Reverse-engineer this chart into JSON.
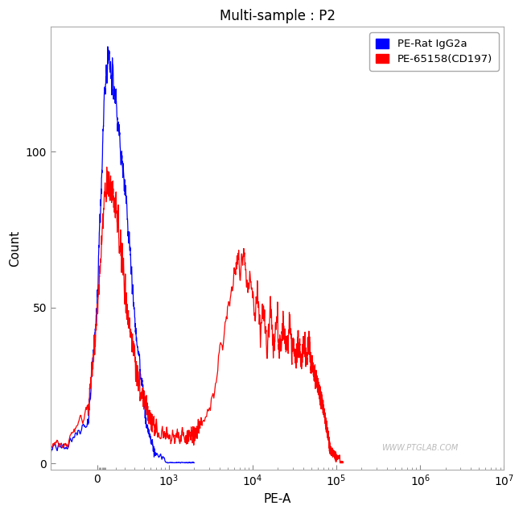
{
  "title": "Multi-sample : P2",
  "xlabel": "PE-A",
  "ylabel": "Count",
  "xlim": [
    -500,
    10000000.0
  ],
  "ylim": [
    -2,
    140
  ],
  "yticks": [
    0,
    50,
    100
  ],
  "xticks": [
    0,
    1000,
    10000,
    100000,
    1000000,
    10000000
  ],
  "xticklabels": [
    "0",
    "10$^3$",
    "10$^4$",
    "10$^5$",
    "10$^6$",
    "10$^7$"
  ],
  "legend_labels": [
    "PE-Rat IgG2a",
    "PE-65158(CD197)"
  ],
  "legend_colors": [
    "#0000ff",
    "#ff0000"
  ],
  "watermark": "WWW.PTGLAB.COM",
  "title_fontsize": 12,
  "axis_label_fontsize": 11,
  "tick_fontsize": 10,
  "symlog_linthresh": 500,
  "symlog_linscale": 0.5
}
